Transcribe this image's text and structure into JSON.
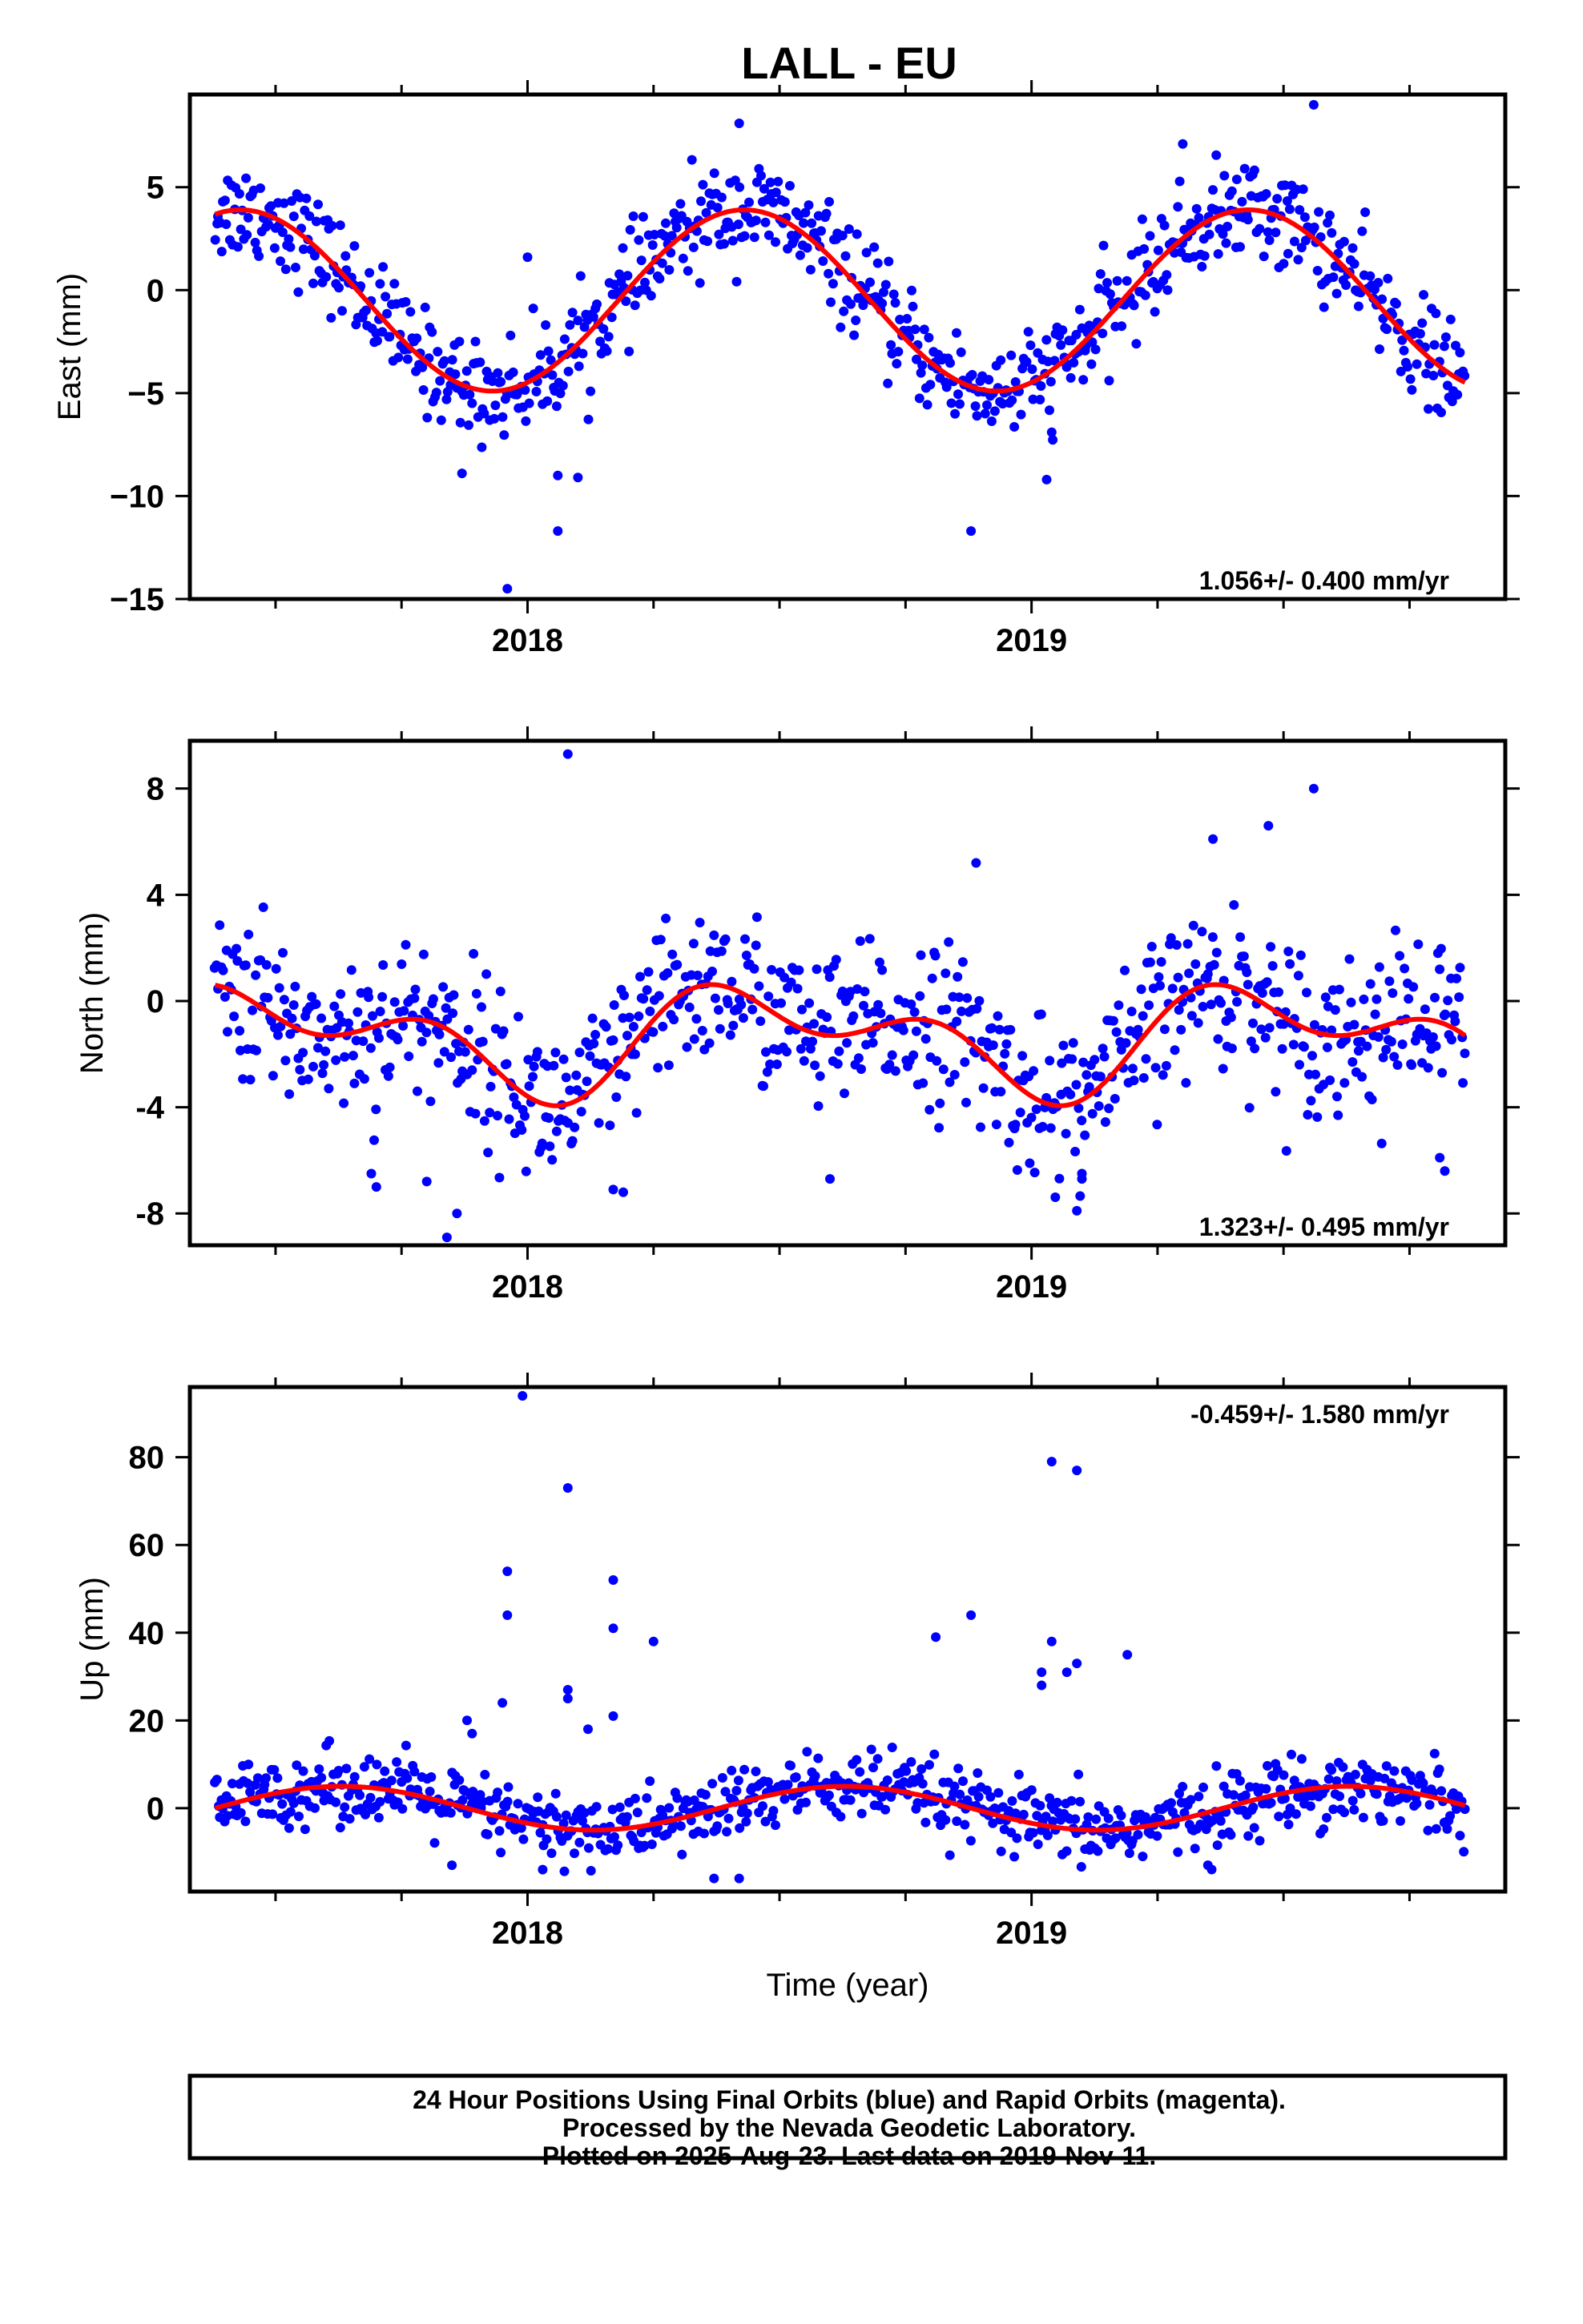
{
  "title": "LALL - EU",
  "colors": {
    "points": "#0000ff",
    "fit": "#ff0000",
    "frame": "#000000"
  },
  "chart_data": [
    {
      "type": "scatter",
      "ylabel": "East (mm)",
      "xlabel": "",
      "xlim": [
        2017.33,
        2019.94
      ],
      "ylim": [
        -15,
        9.5
      ],
      "x_ticks": [
        "2018",
        "2019"
      ],
      "y_ticks": [
        "5",
        "0",
        "−5",
        "−10",
        "−15"
      ],
      "y_tick_values": [
        5,
        0,
        -5,
        -10,
        -15
      ],
      "rate_text": "1.056+/- 0.400 mm/yr",
      "rate_position": "bottom-right",
      "fit": {
        "amplitude": 4.4,
        "phase_peak": 2018.43,
        "trend": 0.0,
        "offset": -0.5
      },
      "series": [
        {
          "name": "Final Orbits (blue)",
          "x_start": 2017.38,
          "x_end": 2019.86,
          "n": 780,
          "scatter": 1.2
        }
      ],
      "outliers": [
        {
          "x": 2017.96,
          "y": -14.5
        },
        {
          "x": 2018.06,
          "y": -11.7
        },
        {
          "x": 2018.1,
          "y": -9.1
        },
        {
          "x": 2018.06,
          "y": -9.0
        },
        {
          "x": 2017.87,
          "y": -8.9
        },
        {
          "x": 2018.88,
          "y": -11.7
        },
        {
          "x": 2019.03,
          "y": -9.2
        },
        {
          "x": 2018.42,
          "y": 8.1
        },
        {
          "x": 2019.56,
          "y": 9.0
        },
        {
          "x": 2019.3,
          "y": 7.1
        },
        {
          "x": 2018.0,
          "y": 1.6
        },
        {
          "x": 2019.04,
          "y": -6.9
        }
      ]
    },
    {
      "type": "scatter",
      "ylabel": "North (mm)",
      "xlabel": "",
      "xlim": [
        2017.33,
        2019.94
      ],
      "ylim": [
        -9.2,
        9.8
      ],
      "x_ticks": [
        "2018",
        "2019"
      ],
      "y_ticks": [
        "8",
        "4",
        "0",
        "-4",
        "-8"
      ],
      "y_tick_values": [
        8,
        4,
        0,
        -4,
        -8
      ],
      "rate_text": "1.323+/- 0.495 mm/yr",
      "rate_position": "bottom-right",
      "fit": {
        "amplitude": 1.5,
        "phase_peak": 2018.5,
        "trend": 1.3,
        "offset": -1.4
      },
      "series": [
        {
          "name": "Final Orbits (blue)",
          "x_start": 2017.38,
          "x_end": 2019.86,
          "n": 780,
          "scatter": 1.5
        }
      ],
      "outliers": [
        {
          "x": 2018.08,
          "y": 9.3
        },
        {
          "x": 2019.56,
          "y": 8.0
        },
        {
          "x": 2017.84,
          "y": -8.9
        },
        {
          "x": 2017.86,
          "y": -8.0
        },
        {
          "x": 2017.7,
          "y": -7.0
        },
        {
          "x": 2017.69,
          "y": -6.5
        },
        {
          "x": 2017.8,
          "y": -6.8
        },
        {
          "x": 2018.17,
          "y": -7.1
        },
        {
          "x": 2018.19,
          "y": -7.2
        },
        {
          "x": 2019.09,
          "y": -7.9
        },
        {
          "x": 2019.1,
          "y": -6.5
        },
        {
          "x": 2019.1,
          "y": -6.7
        },
        {
          "x": 2019.82,
          "y": -6.4
        },
        {
          "x": 2019.81,
          "y": -5.9
        },
        {
          "x": 2018.6,
          "y": -6.7
        },
        {
          "x": 2019.47,
          "y": 6.6
        },
        {
          "x": 2019.36,
          "y": 6.1
        },
        {
          "x": 2018.89,
          "y": 5.2
        }
      ]
    },
    {
      "type": "scatter",
      "ylabel": "Up (mm)",
      "xlabel": "Time (year)",
      "xlim": [
        2017.33,
        2019.94
      ],
      "ylim": [
        -19,
        96
      ],
      "x_ticks": [
        "2018",
        "2019"
      ],
      "y_ticks": [
        "80",
        "60",
        "40",
        "20",
        "0"
      ],
      "y_tick_values": [
        80,
        60,
        40,
        20,
        0
      ],
      "rate_text": "-0.459+/- 1.580 mm/yr",
      "rate_position": "top-right",
      "fit": {
        "amplitude": 5.0,
        "phase_peak": 2018.63,
        "trend": 0.0,
        "offset": 0.0
      },
      "series": [
        {
          "name": "Final Orbits (blue)",
          "x_start": 2017.38,
          "x_end": 2019.86,
          "n": 780,
          "scatter": 4.0
        }
      ],
      "outliers": [
        {
          "x": 2017.99,
          "y": 94
        },
        {
          "x": 2018.08,
          "y": 73
        },
        {
          "x": 2017.96,
          "y": 54
        },
        {
          "x": 2017.96,
          "y": 44
        },
        {
          "x": 2018.17,
          "y": 52
        },
        {
          "x": 2018.17,
          "y": 41
        },
        {
          "x": 2018.25,
          "y": 38
        },
        {
          "x": 2018.81,
          "y": 39
        },
        {
          "x": 2018.88,
          "y": 44
        },
        {
          "x": 2019.04,
          "y": 79
        },
        {
          "x": 2019.09,
          "y": 77
        },
        {
          "x": 2019.04,
          "y": 38
        },
        {
          "x": 2019.09,
          "y": 33
        },
        {
          "x": 2019.07,
          "y": 31
        },
        {
          "x": 2019.02,
          "y": 31
        },
        {
          "x": 2019.02,
          "y": 28
        },
        {
          "x": 2019.19,
          "y": 35
        },
        {
          "x": 2018.08,
          "y": 27
        },
        {
          "x": 2018.08,
          "y": 25
        },
        {
          "x": 2017.95,
          "y": 24
        },
        {
          "x": 2018.17,
          "y": 21
        },
        {
          "x": 2017.88,
          "y": 20
        },
        {
          "x": 2017.89,
          "y": 17
        },
        {
          "x": 2018.12,
          "y": 18
        },
        {
          "x": 2018.03,
          "y": -14
        },
        {
          "x": 2018.37,
          "y": -16
        },
        {
          "x": 2018.42,
          "y": -16
        },
        {
          "x": 2017.85,
          "y": -13
        },
        {
          "x": 2019.35,
          "y": -13
        }
      ]
    }
  ],
  "footer": {
    "line1": "24 Hour Positions Using Final Orbits (blue) and Rapid Orbits (magenta).",
    "line2": "Processed by the Nevada Geodetic Laboratory.",
    "line3": "Plotted on 2025-Aug-23. Last data on 2019-Nov-11."
  }
}
